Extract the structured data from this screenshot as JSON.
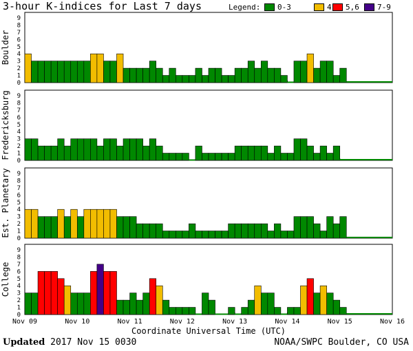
{
  "chart_data": {
    "type": "bar",
    "title": "3-hour K-indices for Last 7 days",
    "xlabel": "Coordinate Universal Time (UTC)",
    "x_ticks": [
      "Nov 09",
      "Nov 10",
      "Nov 11",
      "Nov 12",
      "Nov 13",
      "Nov 14",
      "Nov 15",
      "Nov 16"
    ],
    "y_ticks": [
      "0",
      "1",
      "2",
      "3",
      "4",
      "5",
      "6",
      "7",
      "8",
      "9"
    ],
    "ylim": [
      0,
      9
    ],
    "legend": {
      "title": "Legend:",
      "entries": [
        {
          "label": "0-3",
          "color": "#008800"
        },
        {
          "label": "4",
          "color": "#f2bd00"
        },
        {
          "label": "5,6",
          "color": "#ff0000"
        },
        {
          "label": "7-9",
          "color": "#440088"
        }
      ]
    },
    "series": [
      {
        "name": "Boulder",
        "values": [
          4,
          3,
          3,
          3,
          3,
          3,
          3,
          3,
          3,
          3,
          4,
          4,
          3,
          3,
          4,
          2,
          2,
          2,
          2,
          3,
          2,
          1,
          2,
          1,
          1,
          1,
          2,
          1,
          2,
          2,
          1,
          1,
          2,
          2,
          3,
          2,
          3,
          2,
          2,
          1,
          0,
          3,
          3,
          4,
          2,
          3,
          3,
          1,
          2
        ]
      },
      {
        "name": "Fredericksburg",
        "values": [
          3,
          3,
          2,
          2,
          2,
          3,
          2,
          3,
          3,
          3,
          3,
          2,
          3,
          3,
          2,
          3,
          3,
          3,
          2,
          3,
          2,
          1,
          1,
          1,
          1,
          0,
          2,
          1,
          1,
          1,
          1,
          1,
          2,
          2,
          2,
          2,
          2,
          1,
          2,
          1,
          1,
          3,
          3,
          2,
          1,
          2,
          1,
          2
        ]
      },
      {
        "name": "Est. Planetary",
        "values": [
          4,
          4,
          3,
          3,
          3,
          4,
          3,
          4,
          3,
          4,
          4,
          4,
          4,
          4,
          3,
          3,
          3,
          2,
          2,
          2,
          2,
          1,
          1,
          1,
          1,
          2,
          1,
          1,
          1,
          1,
          1,
          2,
          2,
          2,
          2,
          2,
          2,
          1,
          2,
          1,
          1,
          3,
          3,
          3,
          2,
          1,
          3,
          2,
          3
        ]
      },
      {
        "name": "College",
        "values": [
          3,
          3,
          6,
          6,
          6,
          5,
          4,
          3,
          3,
          3,
          6,
          7,
          6,
          6,
          2,
          2,
          3,
          2,
          3,
          5,
          4,
          2,
          1,
          1,
          1,
          1,
          0,
          3,
          2,
          0,
          0,
          1,
          0,
          1,
          2,
          4,
          3,
          3,
          1,
          0,
          1,
          1,
          4,
          5,
          3,
          4,
          3,
          2,
          1
        ]
      }
    ]
  },
  "footer": {
    "updated_label": "Updated",
    "updated_value": " 2017 Nov 15 0030",
    "credit": "NOAA/SWPC Boulder, CO USA"
  }
}
